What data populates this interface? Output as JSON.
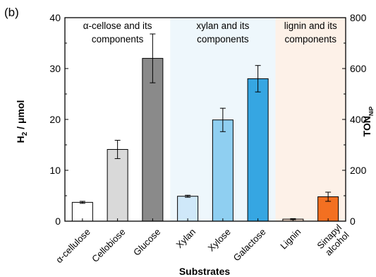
{
  "panel_label": "(b)",
  "colors": {
    "region_1": "#ffffff",
    "region_2": "#eef7fc",
    "region_3": "#fdf1e8",
    "axis": "#000000"
  },
  "chart_data": {
    "type": "bar",
    "categories": [
      "α-cellulose",
      "Cellobiose",
      "Glucose",
      "Xylan",
      "Xylose",
      "Galactose",
      "Lignin",
      "Sinapyl alcohol"
    ],
    "category_lines": [
      [
        "α-cellulose"
      ],
      [
        "Cellobiose"
      ],
      [
        "Glucose"
      ],
      [
        "Xylan"
      ],
      [
        "Xylose"
      ],
      [
        "Galactose"
      ],
      [
        "Lignin"
      ],
      [
        "Sinapyl",
        "alcohol"
      ]
    ],
    "series": [
      {
        "values": [
          3.7,
          14.1,
          32.0,
          4.9,
          19.9,
          28.0,
          0.4,
          4.8
        ],
        "errors": [
          0.2,
          1.8,
          4.8,
          0.2,
          2.3,
          2.6,
          0.1,
          0.9
        ],
        "colors": [
          "#ffffff",
          "#d9d9d9",
          "#8a8a8a",
          "#cfe8f9",
          "#8fcff1",
          "#36a6e2",
          "#fbe3d2",
          "#f37021"
        ]
      }
    ],
    "regions": [
      {
        "label_lines": [
          "α-cellose and its",
          "components"
        ],
        "start": 0,
        "end": 2,
        "color": "#ffffff"
      },
      {
        "label_lines": [
          "xylan and its",
          "components"
        ],
        "start": 3,
        "end": 5,
        "color": "#eef7fc"
      },
      {
        "label_lines": [
          "lignin and its",
          "components"
        ],
        "start": 6,
        "end": 7,
        "color": "#fdf1e8"
      }
    ],
    "xlabel": "Substrates",
    "ylabel_main": "H",
    "ylabel_sub": "2",
    "ylabel_rest": " / μmol",
    "ylim": [
      0,
      40
    ],
    "yticks": [
      0,
      10,
      20,
      30,
      40
    ],
    "y2label_main": "TON",
    "y2label_sub": "NiP",
    "y2lim": [
      0,
      800
    ],
    "y2ticks": [
      0,
      200,
      400,
      600,
      800
    ],
    "grid": false,
    "legend": "none"
  }
}
